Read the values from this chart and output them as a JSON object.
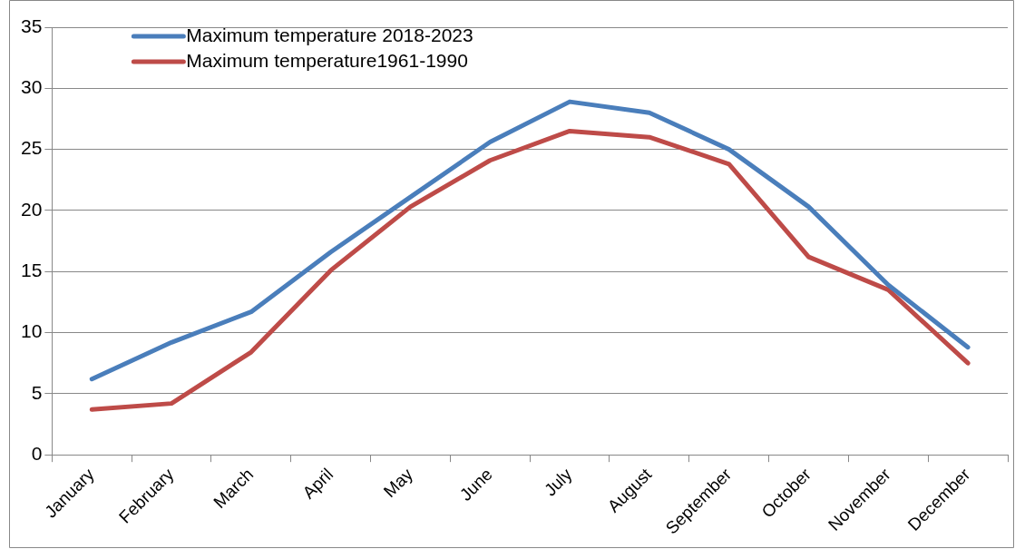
{
  "chart_data": {
    "type": "line",
    "categories": [
      "January",
      "February",
      "March",
      "April",
      "May",
      "June",
      "July",
      "August",
      "September",
      "October",
      "November",
      "December"
    ],
    "series": [
      {
        "name": "Maximum temperature 2018-2023",
        "color": "#4a7ebb",
        "values": [
          6.2,
          9.2,
          11.7,
          16.6,
          21.1,
          25.6,
          28.9,
          28.0,
          25.0,
          20.3,
          13.9,
          8.8
        ]
      },
      {
        "name": "Maximum temperature1961-1990",
        "color": "#be4b48",
        "values": [
          3.7,
          4.2,
          8.4,
          15.1,
          20.3,
          24.1,
          26.5,
          26.0,
          23.8,
          16.2,
          13.5,
          7.5
        ]
      }
    ],
    "ylim": [
      0,
      35
    ],
    "yticks": [
      0,
      5,
      10,
      15,
      20,
      25,
      30,
      35
    ],
    "grid": "y",
    "legend": "top left",
    "marker": "none",
    "line_style": "solid"
  }
}
